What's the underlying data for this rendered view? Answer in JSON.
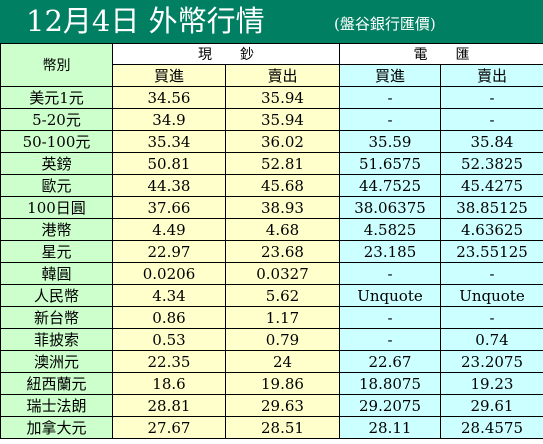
{
  "title": {
    "main": "12月4日 外幣行情",
    "bank": "(盤谷銀行匯價)"
  },
  "header": {
    "currency_col": "幣別",
    "cash_group": "現　　鈔",
    "tt_group": "電　　匯",
    "cash_buy": "買進",
    "cash_sell": "賣出",
    "tt_buy": "買進",
    "tt_sell": "賣出"
  },
  "colors": {
    "title_bg": "#007f63",
    "title_text": "#ffffff",
    "currency_bg": "#ccffcc",
    "cash_bg": "#ffffcc",
    "tt_bg": "#ccffff"
  },
  "rows": [
    {
      "currency": "美元1元",
      "cash_buy": "34.56",
      "cash_sell": "35.94",
      "tt_buy": "-",
      "tt_sell": "-"
    },
    {
      "currency": "5-20元",
      "cash_buy": "34.9",
      "cash_sell": "35.94",
      "tt_buy": "-",
      "tt_sell": "-"
    },
    {
      "currency": "50-100元",
      "cash_buy": "35.34",
      "cash_sell": "36.02",
      "tt_buy": "35.59",
      "tt_sell": "35.84"
    },
    {
      "currency": "英鎊",
      "cash_buy": "50.81",
      "cash_sell": "52.81",
      "tt_buy": "51.6575",
      "tt_sell": "52.3825"
    },
    {
      "currency": "歐元",
      "cash_buy": "44.38",
      "cash_sell": "45.68",
      "tt_buy": "44.7525",
      "tt_sell": "45.4275"
    },
    {
      "currency": "100日圓",
      "cash_buy": "37.66",
      "cash_sell": "38.93",
      "tt_buy": "38.06375",
      "tt_sell": "38.85125"
    },
    {
      "currency": "港幣",
      "cash_buy": "4.49",
      "cash_sell": "4.68",
      "tt_buy": "4.5825",
      "tt_sell": "4.63625"
    },
    {
      "currency": "星元",
      "cash_buy": "22.97",
      "cash_sell": "23.68",
      "tt_buy": "23.185",
      "tt_sell": "23.55125"
    },
    {
      "currency": "韓圓",
      "cash_buy": "0.0206",
      "cash_sell": "0.0327",
      "tt_buy": "-",
      "tt_sell": "-"
    },
    {
      "currency": "人民幣",
      "cash_buy": "4.34",
      "cash_sell": "5.62",
      "tt_buy": "Unquote",
      "tt_sell": "Unquote"
    },
    {
      "currency": "新台幣",
      "cash_buy": "0.86",
      "cash_sell": "1.17",
      "tt_buy": "-",
      "tt_sell": "-"
    },
    {
      "currency": "菲披索",
      "cash_buy": "0.53",
      "cash_sell": "0.79",
      "tt_buy": "-",
      "tt_sell": "0.74"
    },
    {
      "currency": "澳洲元",
      "cash_buy": "22.35",
      "cash_sell": "24",
      "tt_buy": "22.67",
      "tt_sell": "23.2075"
    },
    {
      "currency": "紐西蘭元",
      "cash_buy": "18.6",
      "cash_sell": "19.86",
      "tt_buy": "18.8075",
      "tt_sell": "19.23"
    },
    {
      "currency": "瑞士法朗",
      "cash_buy": "28.81",
      "cash_sell": "29.63",
      "tt_buy": "29.2075",
      "tt_sell": "29.61"
    },
    {
      "currency": "加拿大元",
      "cash_buy": "27.67",
      "cash_sell": "28.51",
      "tt_buy": "28.11",
      "tt_sell": "28.4575"
    }
  ]
}
